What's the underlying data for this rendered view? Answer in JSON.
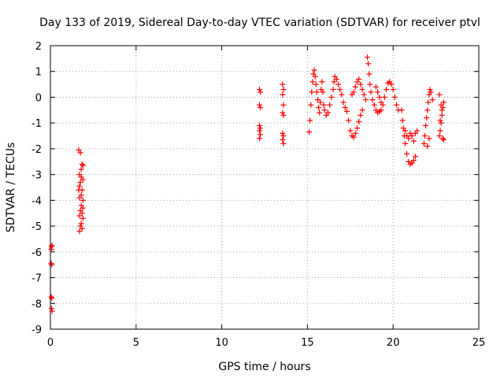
{
  "chart_data": {
    "type": "scatter",
    "title": "Day 133 of 2019, Sidereal Day-to-day VTEC variation (SDTVAR) for receiver ptvl",
    "xlabel": "GPS time / hours",
    "ylabel": "SDTVAR / TECUs",
    "xlim": [
      0,
      25
    ],
    "ylim": [
      -9,
      2
    ],
    "xticks": [
      0,
      5,
      10,
      15,
      20,
      25
    ],
    "yticks": [
      -9,
      -8,
      -7,
      -6,
      -5,
      -4,
      -3,
      -2,
      -1,
      0,
      1,
      2
    ],
    "grid": true,
    "marker": "+",
    "colors": {
      "points": "#ff0000",
      "grid": "#a0a0a0",
      "axes": "#000000"
    },
    "series": [
      {
        "name": "SDTVAR",
        "points": [
          [
            0.05,
            -5.8
          ],
          [
            0.07,
            -5.9
          ],
          [
            0.1,
            -5.75
          ],
          [
            0.05,
            -6.45
          ],
          [
            0.08,
            -6.5
          ],
          [
            0.05,
            -7.75
          ],
          [
            0.08,
            -7.8
          ],
          [
            0.07,
            -8.2
          ],
          [
            0.1,
            -8.3
          ],
          [
            1.65,
            -2.05
          ],
          [
            1.75,
            -2.15
          ],
          [
            1.85,
            -2.6
          ],
          [
            1.9,
            -2.65
          ],
          [
            1.8,
            -2.8
          ],
          [
            1.7,
            -3.0
          ],
          [
            1.8,
            -3.1
          ],
          [
            1.75,
            -3.3
          ],
          [
            1.7,
            -3.45
          ],
          [
            1.85,
            -3.6
          ],
          [
            1.8,
            -3.8
          ],
          [
            1.7,
            -3.9
          ],
          [
            1.9,
            -4.0
          ],
          [
            1.8,
            -4.2
          ],
          [
            1.75,
            -4.4
          ],
          [
            1.85,
            -4.5
          ],
          [
            1.7,
            -4.6
          ],
          [
            1.9,
            -4.7
          ],
          [
            1.8,
            -4.9
          ],
          [
            1.75,
            -5.0
          ],
          [
            1.85,
            -5.1
          ],
          [
            1.7,
            -5.2
          ],
          [
            1.9,
            -4.3
          ],
          [
            1.65,
            -3.6
          ],
          [
            1.9,
            -3.2
          ],
          [
            12.2,
            0.3
          ],
          [
            12.25,
            0.2
          ],
          [
            12.2,
            -0.3
          ],
          [
            12.25,
            -0.4
          ],
          [
            12.2,
            -1.1
          ],
          [
            12.25,
            -1.2
          ],
          [
            12.2,
            -1.3
          ],
          [
            12.25,
            -1.45
          ],
          [
            12.2,
            -1.6
          ],
          [
            13.55,
            0.5
          ],
          [
            13.6,
            0.3
          ],
          [
            13.55,
            0.1
          ],
          [
            13.6,
            -0.3
          ],
          [
            13.55,
            -0.6
          ],
          [
            13.6,
            -0.7
          ],
          [
            13.55,
            -1.4
          ],
          [
            13.6,
            -1.5
          ],
          [
            13.55,
            -1.65
          ],
          [
            13.6,
            -1.8
          ],
          [
            15.1,
            -1.35
          ],
          [
            15.15,
            -0.9
          ],
          [
            15.2,
            -0.3
          ],
          [
            15.25,
            0.2
          ],
          [
            15.3,
            0.6
          ],
          [
            15.35,
            0.9
          ],
          [
            15.4,
            1.05
          ],
          [
            15.45,
            0.8
          ],
          [
            15.5,
            0.5
          ],
          [
            15.55,
            0.2
          ],
          [
            15.6,
            -0.1
          ],
          [
            15.65,
            -0.4
          ],
          [
            15.7,
            -0.6
          ],
          [
            15.75,
            -0.2
          ],
          [
            15.8,
            0.3
          ],
          [
            15.85,
            0.6
          ],
          [
            15.9,
            0.2
          ],
          [
            15.95,
            -0.3
          ],
          [
            16.0,
            -0.5
          ],
          [
            16.1,
            -0.7
          ],
          [
            16.2,
            -0.6
          ],
          [
            16.3,
            -0.3
          ],
          [
            16.4,
            0.0
          ],
          [
            16.5,
            0.3
          ],
          [
            16.55,
            0.6
          ],
          [
            16.6,
            0.8
          ],
          [
            16.7,
            0.7
          ],
          [
            16.8,
            0.5
          ],
          [
            16.9,
            0.3
          ],
          [
            17.0,
            0.1
          ],
          [
            17.1,
            -0.2
          ],
          [
            17.2,
            -0.4
          ],
          [
            17.3,
            -0.55
          ],
          [
            17.4,
            -0.9
          ],
          [
            17.5,
            -1.3
          ],
          [
            17.6,
            -1.5
          ],
          [
            17.7,
            -1.55
          ],
          [
            17.8,
            -1.4
          ],
          [
            17.9,
            -1.2
          ],
          [
            18.0,
            -0.95
          ],
          [
            18.1,
            -0.7
          ],
          [
            18.2,
            -0.5
          ],
          [
            17.6,
            0.1
          ],
          [
            17.7,
            0.2
          ],
          [
            17.8,
            0.4
          ],
          [
            17.9,
            0.6
          ],
          [
            18.0,
            0.7
          ],
          [
            18.1,
            0.5
          ],
          [
            18.2,
            0.3
          ],
          [
            18.3,
            0.1
          ],
          [
            18.4,
            -0.1
          ],
          [
            18.5,
            1.55
          ],
          [
            18.55,
            1.3
          ],
          [
            18.6,
            0.9
          ],
          [
            18.65,
            0.5
          ],
          [
            18.7,
            0.2
          ],
          [
            18.8,
            -0.1
          ],
          [
            18.9,
            -0.3
          ],
          [
            19.0,
            -0.5
          ],
          [
            19.1,
            -0.6
          ],
          [
            19.2,
            -0.55
          ],
          [
            19.3,
            -0.5
          ],
          [
            19.4,
            -0.3
          ],
          [
            19.5,
            0.0
          ],
          [
            19.6,
            0.3
          ],
          [
            19.7,
            0.55
          ],
          [
            19.8,
            0.6
          ],
          [
            19.9,
            0.5
          ],
          [
            20.0,
            0.3
          ],
          [
            20.1,
            0.0
          ],
          [
            20.2,
            -0.3
          ],
          [
            20.3,
            -0.5
          ],
          [
            19.0,
            0.4
          ],
          [
            19.1,
            0.2
          ],
          [
            19.2,
            0.0
          ],
          [
            19.3,
            -0.2
          ],
          [
            20.5,
            -0.5
          ],
          [
            20.55,
            -0.9
          ],
          [
            20.6,
            -1.2
          ],
          [
            20.65,
            -1.5
          ],
          [
            20.7,
            -1.8
          ],
          [
            20.8,
            -2.2
          ],
          [
            20.9,
            -2.5
          ],
          [
            21.0,
            -2.6
          ],
          [
            21.1,
            -2.55
          ],
          [
            21.2,
            -2.45
          ],
          [
            21.3,
            -2.3
          ],
          [
            20.7,
            -1.3
          ],
          [
            20.8,
            -1.5
          ],
          [
            20.9,
            -1.6
          ],
          [
            21.0,
            -1.4
          ],
          [
            21.1,
            -1.5
          ],
          [
            21.2,
            -1.7
          ],
          [
            21.3,
            -1.4
          ],
          [
            21.4,
            -1.3
          ],
          [
            21.8,
            -1.8
          ],
          [
            21.85,
            -1.5
          ],
          [
            21.9,
            -1.1
          ],
          [
            21.95,
            -0.8
          ],
          [
            22.0,
            -0.5
          ],
          [
            22.05,
            -0.2
          ],
          [
            22.1,
            0.1
          ],
          [
            22.15,
            0.3
          ],
          [
            22.2,
            0.2
          ],
          [
            22.3,
            -0.1
          ],
          [
            22.0,
            -1.9
          ],
          [
            22.1,
            -1.6
          ],
          [
            22.7,
            -1.5
          ],
          [
            22.75,
            -1.3
          ],
          [
            22.8,
            -1.0
          ],
          [
            22.85,
            -0.7
          ],
          [
            22.9,
            -0.4
          ],
          [
            22.95,
            -0.2
          ],
          [
            22.7,
            0.1
          ],
          [
            22.8,
            -0.3
          ],
          [
            22.9,
            -1.6
          ],
          [
            22.95,
            -1.65
          ],
          [
            22.75,
            -0.9
          ],
          [
            22.85,
            -0.5
          ]
        ]
      }
    ]
  }
}
